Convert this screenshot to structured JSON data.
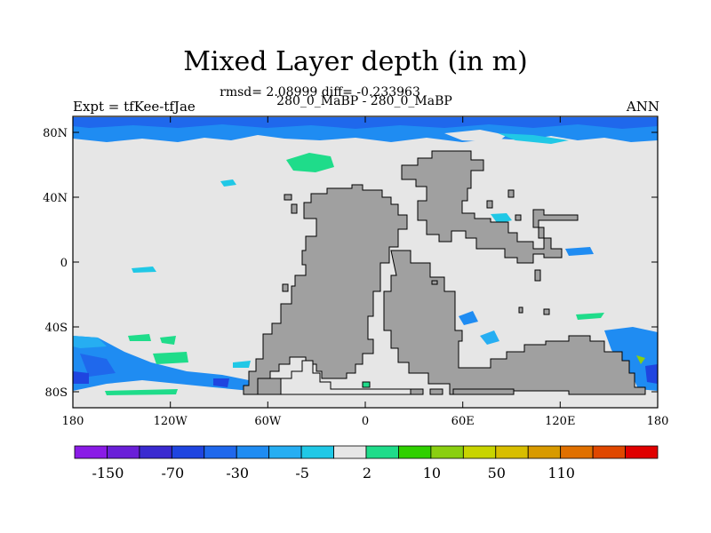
{
  "header": {
    "title": "Mixed Layer depth (in m)",
    "stats": "rmsd= 2.08999 diff= -0.233963",
    "cases": "280_0_MaBP - 280_0_MaBP",
    "expt": "Expt = tfKee-tfJae",
    "season": "ANN"
  },
  "axes": {
    "x_ticks": [
      "180",
      "120W",
      "60W",
      "0",
      "60E",
      "120E",
      "180"
    ],
    "y_ticks": [
      "80N",
      "40N",
      "0",
      "40S",
      "80S"
    ]
  },
  "colorbar": {
    "colors": [
      "#8a1be6",
      "#6a1fd8",
      "#3a2ad0",
      "#1f45e0",
      "#1f68ec",
      "#1f8cf2",
      "#26aef2",
      "#20c8e6",
      "#e6e6e6",
      "#1fdc8a",
      "#2fd000",
      "#8acf10",
      "#c8d400",
      "#d8be00",
      "#d89a00",
      "#e07000",
      "#e04800",
      "#e00000"
    ],
    "labels": [
      "-150",
      "-70",
      "-30",
      "-5",
      "2",
      "10",
      "50",
      "110"
    ]
  },
  "legend_colors": {
    "land": "#a0a0a0",
    "ocean_neutral": "#e6e6e6"
  }
}
